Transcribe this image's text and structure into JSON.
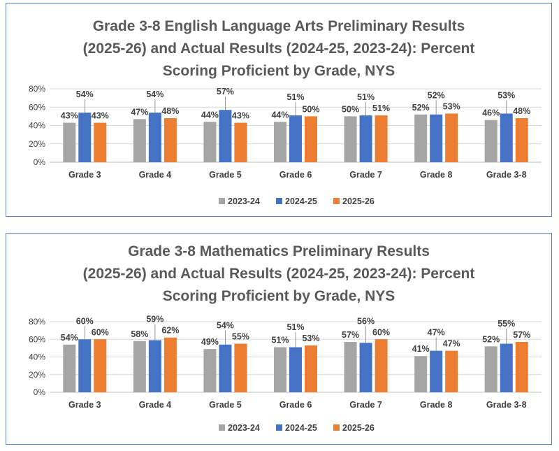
{
  "series_colors": {
    "2023-24": "#a5a5a5",
    "2024-25": "#4472c4",
    "2025-26": "#ed7d31"
  },
  "chart_data": [
    {
      "type": "bar",
      "title_lines": [
        "Grade 3-8 English Language Arts Preliminary Results",
        "(2025-26) and Actual Results (2024-25, 2023-24): Percent",
        "Scoring Proficient by Grade, NYS"
      ],
      "categories": [
        "Grade 3",
        "Grade 4",
        "Grade 5",
        "Grade 6",
        "Grade 7",
        "Grade 8",
        "Grade 3-8"
      ],
      "series": [
        {
          "name": "2023-24",
          "values": [
            43,
            47,
            44,
            44,
            50,
            52,
            46
          ],
          "labels": [
            "43%",
            "47%",
            "44%",
            "44%",
            "50%",
            "52%",
            "46%"
          ]
        },
        {
          "name": "2024-25",
          "values": [
            54,
            54,
            57,
            51,
            51,
            52,
            53
          ],
          "labels": [
            "54%",
            "54%",
            "57%",
            "51%",
            "51%",
            "52%",
            "53%"
          ]
        },
        {
          "name": "2025-26",
          "values": [
            43,
            48,
            43,
            50,
            51,
            53,
            48
          ],
          "labels": [
            "43%",
            "48%",
            "43%",
            "50%",
            "51%",
            "53%",
            "48%"
          ]
        }
      ],
      "yticks": [
        "0%",
        "20%",
        "40%",
        "60%",
        "80%"
      ],
      "ylim": [
        0,
        80
      ],
      "grid": true,
      "legend": "bottom"
    },
    {
      "type": "bar",
      "title_lines": [
        "Grade 3-8 Mathematics Preliminary Results",
        "(2025-26) and Actual Results (2024-25, 2023-24): Percent",
        "Scoring Proficient by Grade, NYS"
      ],
      "categories": [
        "Grade 3",
        "Grade 4",
        "Grade 5",
        "Grade 6",
        "Grade 7",
        "Grade 8",
        "Grade 3-8"
      ],
      "series": [
        {
          "name": "2023-24",
          "values": [
            54,
            58,
            49,
            51,
            57,
            41,
            52
          ],
          "labels": [
            "54%",
            "58%",
            "49%",
            "51%",
            "57%",
            "41%",
            "52%"
          ]
        },
        {
          "name": "2024-25",
          "values": [
            60,
            59,
            54,
            51,
            56,
            47,
            55
          ],
          "labels": [
            "60%",
            "59%",
            "54%",
            "51%",
            "56%",
            "47%",
            "55%"
          ]
        },
        {
          "name": "2025-26",
          "values": [
            60,
            62,
            55,
            53,
            60,
            47,
            57
          ],
          "labels": [
            "60%",
            "62%",
            "55%",
            "53%",
            "60%",
            "47%",
            "57%"
          ]
        }
      ],
      "yticks": [
        "0%",
        "20%",
        "40%",
        "60%",
        "80%"
      ],
      "ylim": [
        0,
        80
      ],
      "grid": true,
      "legend": "bottom"
    }
  ]
}
